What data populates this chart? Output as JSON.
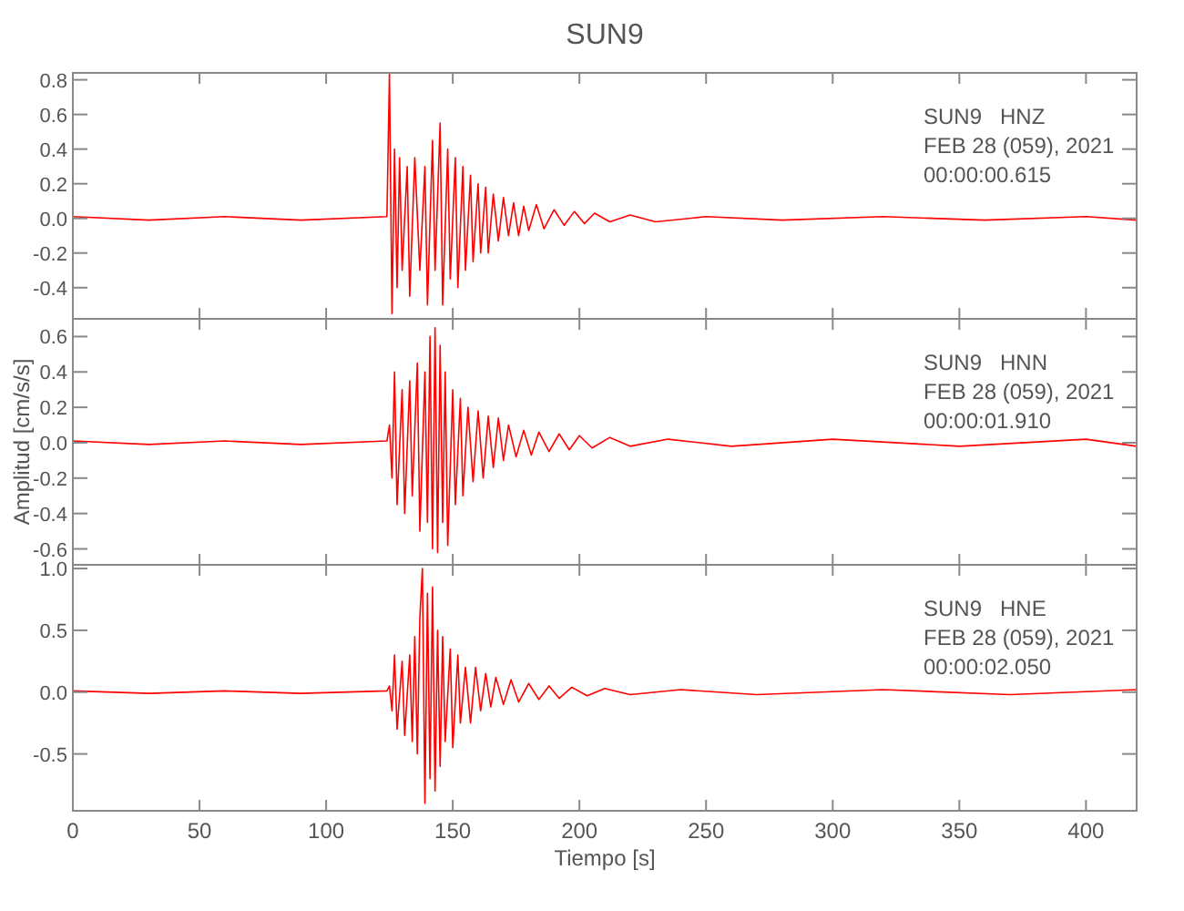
{
  "chart_data": [
    {
      "type": "line",
      "title": "SUN9",
      "color": "#ff0000",
      "xlim": [
        0,
        420
      ],
      "xticks": [
        0,
        50,
        100,
        150,
        200,
        250,
        300,
        350,
        400
      ],
      "ylim": [
        -0.58,
        0.84
      ],
      "yticks": [
        {
          "value": -0.4,
          "label": "-0.4"
        },
        {
          "value": -0.2,
          "label": "-0.2"
        },
        {
          "value": 0,
          "label": "0.0"
        },
        0.2,
        0.4,
        0.6,
        0.8
      ],
      "tick_labels": "y",
      "grid": false,
      "annotations": [
        "SUN9   HNZ",
        "FEB 28 (059), 2021",
        "00:00:00.615"
      ],
      "x": [
        0,
        30,
        60,
        90,
        124,
        125,
        126,
        127,
        128,
        129,
        130,
        132,
        133,
        135,
        137,
        139,
        140,
        142,
        143,
        145,
        146,
        148,
        149,
        151,
        152,
        154,
        155,
        157,
        158,
        160,
        161,
        163,
        164,
        166,
        168,
        170,
        172,
        174,
        176,
        178,
        180,
        183,
        186,
        190,
        194,
        198,
        202,
        206,
        212,
        220,
        230,
        250,
        280,
        320,
        360,
        400,
        420
      ],
      "values": [
        0.01,
        -0.01,
        0.01,
        -0.01,
        0.01,
        0.84,
        -0.55,
        0.4,
        -0.4,
        0.35,
        -0.3,
        0.3,
        -0.45,
        0.35,
        -0.3,
        0.3,
        -0.5,
        0.45,
        -0.3,
        0.55,
        -0.5,
        0.4,
        -0.35,
        0.35,
        -0.4,
        0.3,
        -0.3,
        0.25,
        -0.25,
        0.2,
        -0.2,
        0.18,
        -0.2,
        0.14,
        -0.13,
        0.12,
        -0.1,
        0.09,
        -0.1,
        0.07,
        -0.07,
        0.08,
        -0.06,
        0.05,
        -0.04,
        0.04,
        -0.03,
        0.03,
        -0.02,
        0.02,
        -0.02,
        0.01,
        -0.01,
        0.01,
        -0.01,
        0.01,
        -0.01
      ]
    },
    {
      "type": "line",
      "ylabel": "Amplitud [cm/s/s]",
      "color": "#ff0000",
      "xlim": [
        0,
        420
      ],
      "xticks": [
        0,
        50,
        100,
        150,
        200,
        250,
        300,
        350,
        400
      ],
      "ylim": [
        -0.69,
        0.7
      ],
      "yticks": [
        {
          "value": -0.6,
          "label": "-0.6"
        },
        {
          "value": -0.4,
          "label": "-0.4"
        },
        {
          "value": -0.2,
          "label": "-0.2"
        },
        {
          "value": 0,
          "label": "0.0"
        },
        0.2,
        0.4,
        0.6
      ],
      "tick_labels": "y",
      "grid": false,
      "annotations": [
        "SUN9   HNN",
        "FEB 28 (059), 2021",
        "00:00:01.910"
      ],
      "x": [
        0,
        30,
        60,
        90,
        124,
        125,
        126,
        127,
        128,
        130,
        131,
        133,
        134,
        136,
        137,
        139,
        140,
        141,
        142,
        143,
        144,
        145,
        146,
        147,
        148,
        150,
        151,
        153,
        154,
        156,
        158,
        160,
        162,
        164,
        166,
        168,
        170,
        172,
        175,
        178,
        181,
        184,
        188,
        192,
        196,
        200,
        205,
        212,
        220,
        235,
        260,
        300,
        350,
        400,
        420
      ],
      "values": [
        0.01,
        -0.01,
        0.01,
        -0.01,
        0.01,
        0.1,
        -0.2,
        0.4,
        -0.35,
        0.3,
        -0.4,
        0.35,
        -0.3,
        0.45,
        -0.5,
        0.4,
        -0.45,
        0.6,
        -0.6,
        0.65,
        -0.62,
        0.55,
        -0.45,
        0.4,
        -0.58,
        0.3,
        -0.35,
        0.25,
        -0.3,
        0.2,
        -0.22,
        0.18,
        -0.2,
        0.15,
        -0.14,
        0.14,
        -0.1,
        0.1,
        -0.08,
        0.07,
        -0.07,
        0.06,
        -0.05,
        0.05,
        -0.04,
        0.04,
        -0.03,
        0.03,
        -0.02,
        0.02,
        -0.02,
        0.02,
        -0.02,
        0.02,
        -0.02
      ]
    },
    {
      "type": "line",
      "xlabel": "Tiempo [s]",
      "color": "#ff0000",
      "xlim": [
        0,
        420
      ],
      "xticks": [
        0,
        50,
        100,
        150,
        200,
        250,
        300,
        350,
        400
      ],
      "ylim": [
        -0.96,
        1.03
      ],
      "yticks": [
        {
          "value": -0.5,
          "label": "-0.5"
        },
        {
          "value": 0,
          "label": "0.0"
        },
        0.5,
        {
          "value": 1,
          "label": "1.0"
        }
      ],
      "grid": false,
      "annotations": [
        "SUN9   HNE",
        "FEB 28 (059), 2021",
        "00:00:02.050"
      ],
      "x": [
        0,
        30,
        60,
        90,
        124,
        125,
        126,
        127,
        128,
        130,
        131,
        133,
        134,
        135,
        136,
        137,
        138,
        139,
        140,
        141,
        142,
        143,
        144,
        145,
        146,
        147,
        149,
        150,
        152,
        153,
        155,
        157,
        159,
        161,
        163,
        165,
        167,
        170,
        173,
        176,
        180,
        184,
        188,
        192,
        197,
        203,
        210,
        220,
        240,
        270,
        320,
        370,
        420
      ],
      "values": [
        0.01,
        -0.01,
        0.01,
        -0.01,
        0.01,
        0.05,
        -0.15,
        0.3,
        -0.3,
        0.25,
        -0.35,
        0.3,
        -0.4,
        0.45,
        -0.5,
        0.6,
        1.0,
        -0.9,
        0.8,
        -0.7,
        0.85,
        -0.8,
        0.5,
        -0.6,
        0.45,
        -0.4,
        0.35,
        -0.45,
        0.3,
        -0.25,
        0.2,
        -0.25,
        0.2,
        -0.15,
        0.15,
        -0.12,
        0.12,
        -0.1,
        0.1,
        -0.08,
        0.07,
        -0.06,
        0.05,
        -0.05,
        0.04,
        -0.03,
        0.03,
        -0.02,
        0.02,
        -0.02,
        0.02,
        -0.02,
        0.02
      ]
    }
  ]
}
